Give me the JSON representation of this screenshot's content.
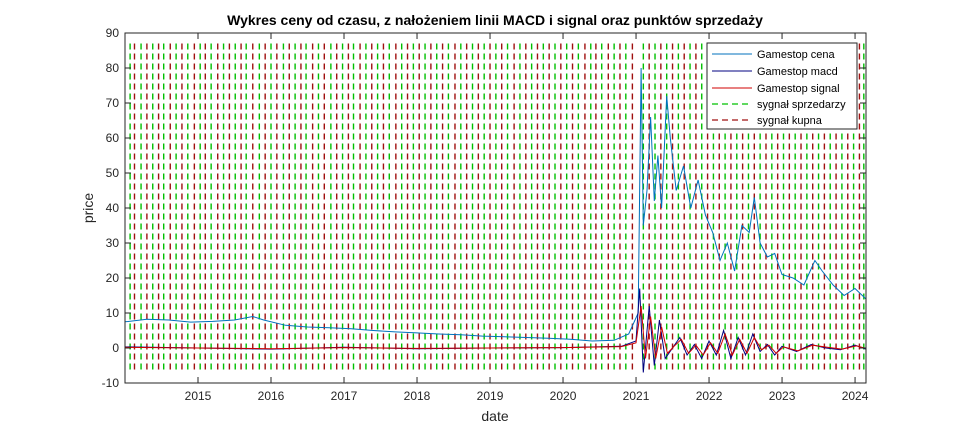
{
  "chart_data": {
    "type": "line",
    "title": "Wykres ceny od czasu, z nałożeniem linii MACD i signal oraz punktów sprzedaży",
    "xlabel": "date",
    "ylabel": "price",
    "xlim": [
      2014.0,
      2024.15
    ],
    "ylim": [
      -10,
      90
    ],
    "x_ticks": [
      2015,
      2016,
      2017,
      2018,
      2019,
      2020,
      2021,
      2022,
      2023,
      2024
    ],
    "y_ticks": [
      -10,
      0,
      10,
      20,
      30,
      40,
      50,
      60,
      70,
      80,
      90
    ],
    "grid": false,
    "legend_position": "top-right",
    "series": [
      {
        "name": "Gamestop cena",
        "color": "#0072BD",
        "x": [
          2014.0,
          2014.3,
          2014.6,
          2014.9,
          2015.2,
          2015.5,
          2015.75,
          2015.9,
          2016.2,
          2016.5,
          2016.8,
          2017.1,
          2017.4,
          2017.7,
          2018.0,
          2018.3,
          2018.6,
          2018.9,
          2019.2,
          2019.5,
          2019.8,
          2020.1,
          2020.4,
          2020.7,
          2020.9,
          2021.03,
          2021.07,
          2021.1,
          2021.15,
          2021.2,
          2021.25,
          2021.3,
          2021.35,
          2021.42,
          2021.47,
          2021.55,
          2021.65,
          2021.75,
          2021.85,
          2021.95,
          2022.05,
          2022.15,
          2022.25,
          2022.35,
          2022.45,
          2022.55,
          2022.62,
          2022.7,
          2022.8,
          2022.9,
          2023.0,
          2023.15,
          2023.3,
          2023.45,
          2023.55,
          2023.7,
          2023.85,
          2024.0,
          2024.15
        ],
        "y": [
          7.5,
          8.2,
          8.0,
          7.4,
          7.6,
          8.0,
          9.0,
          8.0,
          6.5,
          6.0,
          5.8,
          5.5,
          5.0,
          4.6,
          4.3,
          4.0,
          3.8,
          3.4,
          3.2,
          3.0,
          2.8,
          2.5,
          2.0,
          2.2,
          4.0,
          10.0,
          80.0,
          35.0,
          45.0,
          66.0,
          42.0,
          55.0,
          40.0,
          72.0,
          60.0,
          45.0,
          52.0,
          40.0,
          48.0,
          38.0,
          33.0,
          25.0,
          30.0,
          22.0,
          35.0,
          33.0,
          43.0,
          30.0,
          26.0,
          27.0,
          21.0,
          20.0,
          18.0,
          25.0,
          22.0,
          18.0,
          15.0,
          17.0,
          14.0
        ]
      },
      {
        "name": "Gamestop macd",
        "color": "#000080",
        "x": [
          2014.0,
          2015.0,
          2016.0,
          2017.0,
          2018.0,
          2019.0,
          2020.0,
          2020.8,
          2021.0,
          2021.05,
          2021.1,
          2021.18,
          2021.25,
          2021.32,
          2021.4,
          2021.5,
          2021.6,
          2021.7,
          2021.8,
          2021.9,
          2022.0,
          2022.1,
          2022.2,
          2022.3,
          2022.4,
          2022.5,
          2022.6,
          2022.7,
          2022.8,
          2022.9,
          2023.0,
          2023.2,
          2023.4,
          2023.6,
          2023.8,
          2024.0,
          2024.15
        ],
        "y": [
          0.3,
          0.0,
          -0.3,
          0.2,
          -0.2,
          0.0,
          0.1,
          0.5,
          2.0,
          17.0,
          -7.0,
          12.0,
          -5.0,
          8.0,
          -3.0,
          0.0,
          3.0,
          -2.0,
          1.0,
          -3.0,
          2.0,
          -2.0,
          5.0,
          -3.0,
          3.0,
          -2.0,
          4.0,
          -1.0,
          1.0,
          -2.0,
          0.5,
          -1.0,
          1.0,
          0.0,
          -0.5,
          0.8,
          -0.3
        ]
      },
      {
        "name": "Gamestop signal",
        "color": "#D00000",
        "x": [
          2014.0,
          2015.0,
          2016.0,
          2017.0,
          2018.0,
          2019.0,
          2020.0,
          2020.8,
          2021.0,
          2021.07,
          2021.13,
          2021.2,
          2021.27,
          2021.35,
          2021.43,
          2021.52,
          2021.62,
          2021.72,
          2021.82,
          2021.92,
          2022.02,
          2022.12,
          2022.22,
          2022.32,
          2022.42,
          2022.52,
          2022.62,
          2022.72,
          2022.82,
          2022.92,
          2023.02,
          2023.22,
          2023.42,
          2023.62,
          2023.82,
          2024.02,
          2024.15
        ],
        "y": [
          0.2,
          0.0,
          -0.2,
          0.1,
          -0.1,
          0.0,
          0.1,
          0.4,
          1.5,
          12.0,
          -3.0,
          9.0,
          -3.0,
          6.0,
          -1.5,
          0.5,
          2.5,
          -1.5,
          0.8,
          -2.0,
          1.5,
          -1.5,
          4.0,
          -2.0,
          2.5,
          -1.5,
          3.0,
          -0.5,
          0.8,
          -1.5,
          0.3,
          -0.8,
          0.8,
          0.2,
          -0.3,
          0.6,
          -0.1
        ]
      }
    ],
    "signals": {
      "sell": {
        "name": "sygnał sprzedarzy",
        "color": "#00C000",
        "x": [
          2014.07,
          2014.22,
          2014.38,
          2014.53,
          2014.7,
          2014.86,
          2015.03,
          2015.18,
          2015.35,
          2015.51,
          2015.66,
          2015.84,
          2016.0,
          2016.17,
          2016.33,
          2016.48,
          2016.65,
          2016.82,
          2016.98,
          2017.13,
          2017.3,
          2017.46,
          2017.62,
          2017.79,
          2017.95,
          2018.11,
          2018.27,
          2018.43,
          2018.6,
          2018.76,
          2018.92,
          2019.08,
          2019.24,
          2019.41,
          2019.57,
          2019.73,
          2019.89,
          2020.05,
          2020.21,
          2020.38,
          2020.53,
          2020.7,
          2020.86,
          2021.1,
          2021.26,
          2021.42,
          2021.58,
          2021.74,
          2021.9,
          2022.06,
          2022.22,
          2022.38,
          2022.54,
          2022.7,
          2022.86,
          2023.02,
          2023.18,
          2023.34,
          2023.5,
          2023.66,
          2023.82,
          2023.98,
          2024.12
        ]
      },
      "buy": {
        "name": "sygnał kupna",
        "color": "#A01010",
        "x": [
          2014.13,
          2014.3,
          2014.46,
          2014.62,
          2014.78,
          2014.95,
          2015.1,
          2015.27,
          2015.43,
          2015.59,
          2015.75,
          2015.92,
          2016.08,
          2016.25,
          2016.41,
          2016.57,
          2016.73,
          2016.9,
          2017.06,
          2017.22,
          2017.38,
          2017.54,
          2017.71,
          2017.87,
          2018.03,
          2018.19,
          2018.35,
          2018.52,
          2018.68,
          2018.84,
          2019.0,
          2019.16,
          2019.33,
          2019.49,
          2019.65,
          2019.81,
          2019.97,
          2020.13,
          2020.3,
          2020.45,
          2020.62,
          2020.78,
          2020.95,
          2021.18,
          2021.34,
          2021.5,
          2021.66,
          2021.82,
          2021.98,
          2022.14,
          2022.3,
          2022.46,
          2022.62,
          2022.78,
          2022.94,
          2023.1,
          2023.26,
          2023.42,
          2023.58,
          2023.74,
          2023.9,
          2024.06
        ]
      }
    }
  }
}
